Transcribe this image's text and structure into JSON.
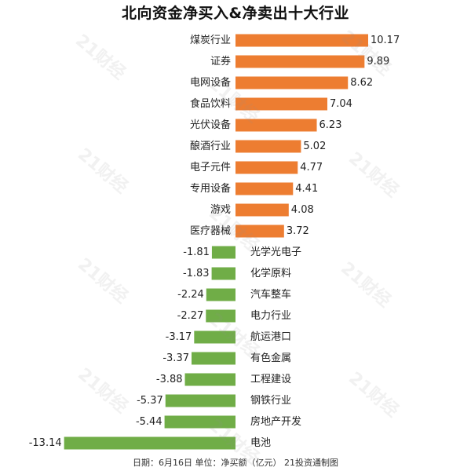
{
  "chart_data": {
    "type": "bar",
    "orientation": "horizontal",
    "title": "北向资金净买入&净卖出十大行业",
    "categories": [
      "煤炭行业",
      "证券",
      "电网设备",
      "食品饮料",
      "光伏设备",
      "酿酒行业",
      "电子元件",
      "专用设备",
      "游戏",
      "医疗器械",
      "光学光电子",
      "化学原料",
      "汽车整车",
      "电力行业",
      "航运港口",
      "有色金属",
      "工程建设",
      "钢铁行业",
      "房地产开发",
      "电池"
    ],
    "values": [
      10.17,
      9.89,
      8.62,
      7.04,
      6.23,
      5.02,
      4.77,
      4.41,
      4.08,
      3.72,
      -1.81,
      -1.83,
      -2.24,
      -2.27,
      -3.17,
      -3.37,
      -3.88,
      -5.37,
      -5.44,
      -13.14
    ],
    "value_labels": [
      "10.17",
      "9.89",
      "8.62",
      "7.04",
      "6.23",
      "5.02",
      "4.77",
      "4.41",
      "4.08",
      "3.72",
      "-1.81",
      "-1.83",
      "-2.24",
      "-2.27",
      "-3.17",
      "-3.37",
      "-3.88",
      "-5.37",
      "-5.44",
      "-13.14"
    ],
    "colors": {
      "positive": "#ED7D31",
      "negative": "#70AD47"
    }
  },
  "footer": "日期：6月16日 单位：净买额（亿元） 21投资通制图",
  "watermark": "21财经"
}
